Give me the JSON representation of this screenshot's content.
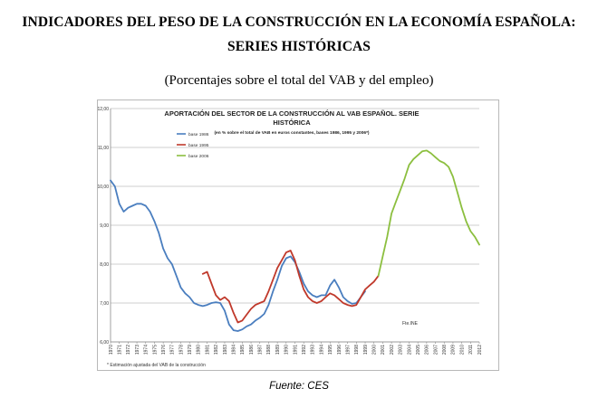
{
  "header": {
    "title_line1": "INDICADORES DEL PESO DE LA CONSTRUCCIÓN EN LA ECONOMÍA ESPAÑOLA:",
    "title_line2": "SERIES HISTÓRICAS",
    "subtitle": "(Porcentajes sobre el total del VAB y del empleo)",
    "source": "Fuente: CES"
  },
  "chart_data": {
    "type": "line",
    "title_line1": "APORTACIÓN DEL SECTOR DE LA CONSTRUCCIÓN AL VAB ESPAÑOL. SERIE",
    "title_line2": "HISTÓRICA",
    "subtitle": "(en % sobre el total de VAB en euros constantes, bases 1986, 1995 y 2006*)",
    "source_note": "Fte.INE",
    "footnote": "* Estimación ajustada del VAB de la construcción",
    "ylim": [
      6,
      12
    ],
    "yticks": [
      "6,00",
      "7,00",
      "8,00",
      "9,00",
      "10,00",
      "11,00",
      "12,00"
    ],
    "xticks": [
      "1970",
      "1971",
      "1972",
      "1973",
      "1974",
      "1975",
      "1976",
      "1977",
      "1978",
      "1979",
      "1980",
      "1981",
      "1982",
      "1983",
      "1984",
      "1985",
      "1986",
      "1987",
      "1988",
      "1989",
      "1990",
      "1991",
      "1992",
      "1993",
      "1994",
      "1995",
      "1996",
      "1997",
      "1998",
      "1999",
      "2000",
      "2001",
      "2002",
      "2003",
      "2004",
      "2005",
      "2006",
      "2007",
      "2008",
      "2009",
      "2010",
      "2011",
      "2012"
    ],
    "grid": true,
    "legend_position": "top-left",
    "series": [
      {
        "name": "base 1986",
        "color": "#4a7ebf",
        "x": [
          1970.0,
          1970.5,
          1971.0,
          1971.5,
          1972.0,
          1972.5,
          1973.0,
          1973.5,
          1974.0,
          1974.5,
          1975.0,
          1975.5,
          1976.0,
          1976.5,
          1977.0,
          1977.5,
          1978.0,
          1978.5,
          1979.0,
          1979.5,
          1980.0,
          1980.5,
          1981.0,
          1981.5,
          1982.0,
          1982.5,
          1983.0,
          1983.5,
          1984.0,
          1984.5,
          1985.0,
          1985.5,
          1986.0,
          1986.5,
          1987.0,
          1987.5,
          1988.0,
          1988.5,
          1989.0,
          1989.5,
          1990.0,
          1990.5,
          1991.0,
          1991.5,
          1992.0,
          1992.5,
          1993.0,
          1993.5,
          1994.0,
          1994.5,
          1995.0,
          1995.5,
          1996.0,
          1996.5,
          1997.0,
          1997.5,
          1998.0,
          1998.5,
          1999.0
        ],
        "y": [
          10.15,
          10.0,
          9.55,
          9.35,
          9.45,
          9.5,
          9.55,
          9.55,
          9.5,
          9.35,
          9.1,
          8.8,
          8.4,
          8.15,
          8.0,
          7.7,
          7.4,
          7.25,
          7.15,
          7.0,
          6.95,
          6.92,
          6.95,
          7.0,
          7.02,
          7.0,
          6.8,
          6.45,
          6.3,
          6.28,
          6.32,
          6.4,
          6.45,
          6.55,
          6.62,
          6.72,
          6.95,
          7.3,
          7.6,
          7.95,
          8.15,
          8.2,
          8.05,
          7.8,
          7.5,
          7.3,
          7.2,
          7.15,
          7.2,
          7.2,
          7.45,
          7.6,
          7.4,
          7.15,
          7.05,
          6.98,
          7.0,
          7.15,
          7.3
        ]
      },
      {
        "name": "base 1995",
        "color": "#c0392b",
        "x": [
          1980.5,
          1981.0,
          1981.5,
          1982.0,
          1982.5,
          1983.0,
          1983.5,
          1984.0,
          1984.5,
          1985.0,
          1985.5,
          1986.0,
          1986.5,
          1987.0,
          1987.5,
          1988.0,
          1988.5,
          1989.0,
          1989.5,
          1990.0,
          1990.5,
          1991.0,
          1991.5,
          1992.0,
          1992.5,
          1993.0,
          1993.5,
          1994.0,
          1994.5,
          1995.0,
          1995.5,
          1996.0,
          1996.5,
          1997.0,
          1997.5,
          1998.0,
          1998.5,
          1999.0,
          1999.5,
          2000.0,
          2000.5
        ],
        "y": [
          7.75,
          7.8,
          7.5,
          7.2,
          7.08,
          7.15,
          7.05,
          6.75,
          6.5,
          6.55,
          6.7,
          6.85,
          6.95,
          7.0,
          7.05,
          7.3,
          7.6,
          7.9,
          8.1,
          8.3,
          8.35,
          8.1,
          7.7,
          7.35,
          7.15,
          7.05,
          7.0,
          7.05,
          7.15,
          7.25,
          7.2,
          7.1,
          7.0,
          6.95,
          6.92,
          6.95,
          7.15,
          7.35,
          7.45,
          7.55,
          7.7
        ]
      },
      {
        "name": "base 2006",
        "color": "#8cbf3f",
        "x": [
          2000.5,
          2001.0,
          2001.5,
          2002.0,
          2002.5,
          2003.0,
          2003.5,
          2004.0,
          2004.5,
          2005.0,
          2005.5,
          2006.0,
          2006.5,
          2007.0,
          2007.5,
          2008.0,
          2008.5,
          2009.0,
          2009.5,
          2010.0,
          2010.5,
          2011.0,
          2011.5,
          2012.0
        ],
        "y": [
          7.7,
          8.2,
          8.7,
          9.3,
          9.6,
          9.9,
          10.2,
          10.55,
          10.7,
          10.8,
          10.9,
          10.92,
          10.85,
          10.75,
          10.65,
          10.6,
          10.5,
          10.25,
          9.85,
          9.45,
          9.1,
          8.85,
          8.7,
          8.5
        ]
      }
    ]
  }
}
